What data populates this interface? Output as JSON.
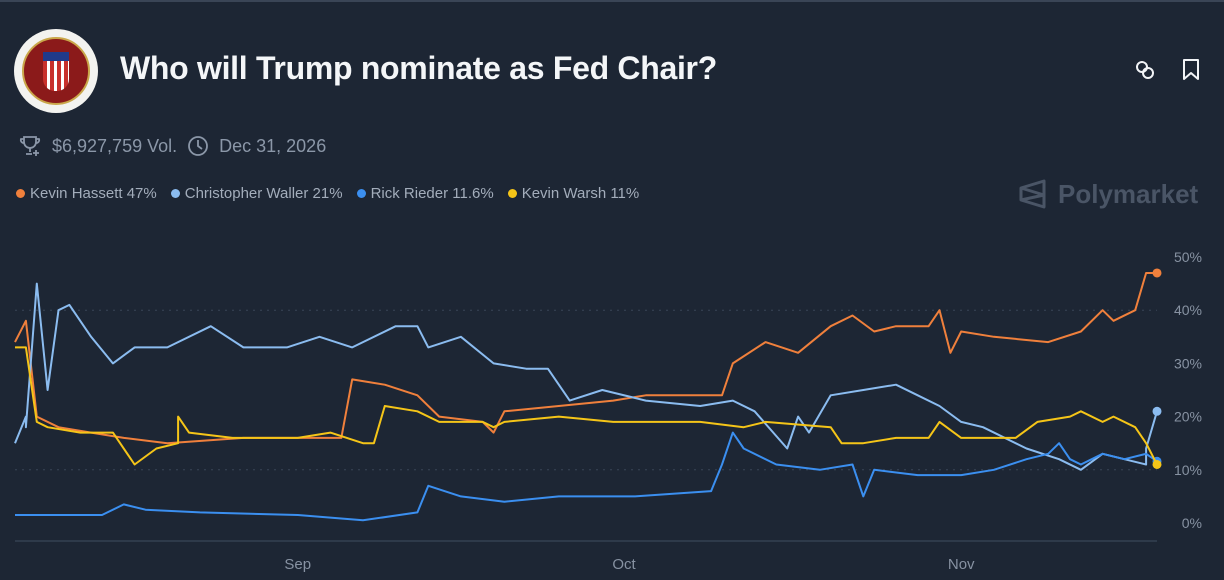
{
  "header": {
    "title": "Who will Trump nominate as Fed Chair?",
    "logo_text": "Board of Governors of the Federal Reserve System",
    "volume": "$6,927,759 Vol.",
    "end_date": "Dec 31, 2026",
    "brand": "Polymarket",
    "icons": [
      "trophy-icon",
      "clock-icon",
      "link-icon",
      "bookmark-icon"
    ]
  },
  "legend": [
    {
      "label": "Kevin Hassett 47%",
      "color": "#f0803c"
    },
    {
      "label": "Christopher Waller 21%",
      "color": "#8bbcf0"
    },
    {
      "label": "Rick Rieder 11.6%",
      "color": "#3b8ff0"
    },
    {
      "label": "Kevin Warsh 11%",
      "color": "#f5c518"
    }
  ],
  "chart_data": {
    "type": "line",
    "x_range": [
      "2025-08-06",
      "2025-11-19"
    ],
    "x_ticks": [
      {
        "date": "2025-09-01",
        "label": "Sep"
      },
      {
        "date": "2025-10-01",
        "label": "Oct"
      },
      {
        "date": "2025-11-01",
        "label": "Nov"
      }
    ],
    "ylim": [
      0,
      50
    ],
    "y_ticks": [
      {
        "v": 0,
        "label": "0%"
      },
      {
        "v": 10,
        "label": "10%"
      },
      {
        "v": 20,
        "label": "20%"
      },
      {
        "v": 30,
        "label": "30%"
      },
      {
        "v": 40,
        "label": "40%"
      },
      {
        "v": 50,
        "label": "50%"
      }
    ],
    "y_axis_position": "right",
    "grid": "dotted at 10% and 40%",
    "series": [
      {
        "name": "Kevin Hassett",
        "color": "#f0803c",
        "points": [
          [
            "2025-08-06",
            34
          ],
          [
            "2025-08-07",
            38
          ],
          [
            "2025-08-08",
            20
          ],
          [
            "2025-08-10",
            18
          ],
          [
            "2025-08-13",
            17
          ],
          [
            "2025-08-16",
            16
          ],
          [
            "2025-08-20",
            15
          ],
          [
            "2025-08-27",
            16
          ],
          [
            "2025-09-05",
            16
          ],
          [
            "2025-09-06",
            27
          ],
          [
            "2025-09-09",
            26
          ],
          [
            "2025-09-12",
            24
          ],
          [
            "2025-09-14",
            20
          ],
          [
            "2025-09-18",
            19
          ],
          [
            "2025-09-19",
            17
          ],
          [
            "2025-09-20",
            21
          ],
          [
            "2025-09-25",
            22
          ],
          [
            "2025-09-30",
            23
          ],
          [
            "2025-10-03",
            24
          ],
          [
            "2025-10-10",
            24
          ],
          [
            "2025-10-11",
            30
          ],
          [
            "2025-10-14",
            34
          ],
          [
            "2025-10-17",
            32
          ],
          [
            "2025-10-20",
            37
          ],
          [
            "2025-10-22",
            39
          ],
          [
            "2025-10-24",
            36
          ],
          [
            "2025-10-26",
            37
          ],
          [
            "2025-10-29",
            37
          ],
          [
            "2025-10-30",
            40
          ],
          [
            "2025-10-31",
            32
          ],
          [
            "2025-11-01",
            36
          ],
          [
            "2025-11-04",
            35
          ],
          [
            "2025-11-09",
            34
          ],
          [
            "2025-11-12",
            36
          ],
          [
            "2025-11-14",
            40
          ],
          [
            "2025-11-15",
            38
          ],
          [
            "2025-11-17",
            40
          ],
          [
            "2025-11-18",
            47
          ],
          [
            "2025-11-19",
            47
          ]
        ]
      },
      {
        "name": "Christopher Waller",
        "color": "#8bbcf0",
        "points": [
          [
            "2025-08-06",
            15
          ],
          [
            "2025-08-07",
            20
          ],
          [
            "2025-08-07",
            18
          ],
          [
            "2025-08-08",
            45
          ],
          [
            "2025-08-09",
            25
          ],
          [
            "2025-08-10",
            40
          ],
          [
            "2025-08-11",
            41
          ],
          [
            "2025-08-13",
            35
          ],
          [
            "2025-08-15",
            30
          ],
          [
            "2025-08-17",
            33
          ],
          [
            "2025-08-20",
            33
          ],
          [
            "2025-08-24",
            37
          ],
          [
            "2025-08-27",
            33
          ],
          [
            "2025-08-31",
            33
          ],
          [
            "2025-09-03",
            35
          ],
          [
            "2025-09-06",
            33
          ],
          [
            "2025-09-10",
            37
          ],
          [
            "2025-09-12",
            37
          ],
          [
            "2025-09-13",
            33
          ],
          [
            "2025-09-16",
            35
          ],
          [
            "2025-09-19",
            30
          ],
          [
            "2025-09-22",
            29
          ],
          [
            "2025-09-24",
            29
          ],
          [
            "2025-09-26",
            23
          ],
          [
            "2025-09-29",
            25
          ],
          [
            "2025-10-03",
            23
          ],
          [
            "2025-10-08",
            22
          ],
          [
            "2025-10-11",
            23
          ],
          [
            "2025-10-13",
            21
          ],
          [
            "2025-10-16",
            14
          ],
          [
            "2025-10-17",
            20
          ],
          [
            "2025-10-18",
            17
          ],
          [
            "2025-10-20",
            24
          ],
          [
            "2025-10-23",
            25
          ],
          [
            "2025-10-26",
            26
          ],
          [
            "2025-10-28",
            24
          ],
          [
            "2025-10-30",
            22
          ],
          [
            "2025-11-01",
            19
          ],
          [
            "2025-11-03",
            18
          ],
          [
            "2025-11-07",
            14
          ],
          [
            "2025-11-10",
            12
          ],
          [
            "2025-11-12",
            10
          ],
          [
            "2025-11-14",
            13
          ],
          [
            "2025-11-16",
            12
          ],
          [
            "2025-11-18",
            11
          ],
          [
            "2025-11-18",
            14
          ],
          [
            "2025-11-19",
            21
          ]
        ]
      },
      {
        "name": "Rick Rieder",
        "color": "#3b8ff0",
        "points": [
          [
            "2025-08-06",
            1.5
          ],
          [
            "2025-08-14",
            1.5
          ],
          [
            "2025-08-16",
            3.5
          ],
          [
            "2025-08-18",
            2.5
          ],
          [
            "2025-08-23",
            2
          ],
          [
            "2025-09-01",
            1.5
          ],
          [
            "2025-09-07",
            0.5
          ],
          [
            "2025-09-12",
            2
          ],
          [
            "2025-09-13",
            7
          ],
          [
            "2025-09-16",
            5
          ],
          [
            "2025-09-20",
            4
          ],
          [
            "2025-09-25",
            5
          ],
          [
            "2025-10-02",
            5
          ],
          [
            "2025-10-09",
            6
          ],
          [
            "2025-10-10",
            11
          ],
          [
            "2025-10-11",
            17
          ],
          [
            "2025-10-12",
            14
          ],
          [
            "2025-10-15",
            11
          ],
          [
            "2025-10-19",
            10
          ],
          [
            "2025-10-22",
            11
          ],
          [
            "2025-10-23",
            5
          ],
          [
            "2025-10-24",
            10
          ],
          [
            "2025-10-28",
            9
          ],
          [
            "2025-11-01",
            9
          ],
          [
            "2025-11-04",
            10
          ],
          [
            "2025-11-07",
            12
          ],
          [
            "2025-11-09",
            13
          ],
          [
            "2025-11-10",
            15
          ],
          [
            "2025-11-11",
            12
          ],
          [
            "2025-11-12",
            11
          ],
          [
            "2025-11-14",
            13
          ],
          [
            "2025-11-16",
            12
          ],
          [
            "2025-11-18",
            13
          ],
          [
            "2025-11-19",
            11.6
          ]
        ]
      },
      {
        "name": "Kevin Warsh",
        "color": "#f5c518",
        "points": [
          [
            "2025-08-06",
            33
          ],
          [
            "2025-08-07",
            33
          ],
          [
            "2025-08-08",
            19
          ],
          [
            "2025-08-09",
            18
          ],
          [
            "2025-08-12",
            17
          ],
          [
            "2025-08-15",
            17
          ],
          [
            "2025-08-17",
            11
          ],
          [
            "2025-08-19",
            14
          ],
          [
            "2025-08-21",
            15
          ],
          [
            "2025-08-21",
            20
          ],
          [
            "2025-08-22",
            17
          ],
          [
            "2025-08-26",
            16
          ],
          [
            "2025-09-01",
            16
          ],
          [
            "2025-09-04",
            17
          ],
          [
            "2025-09-07",
            15
          ],
          [
            "2025-09-08",
            15
          ],
          [
            "2025-09-09",
            22
          ],
          [
            "2025-09-12",
            21
          ],
          [
            "2025-09-14",
            19
          ],
          [
            "2025-09-18",
            19
          ],
          [
            "2025-09-19",
            18
          ],
          [
            "2025-09-20",
            19
          ],
          [
            "2025-09-25",
            20
          ],
          [
            "2025-09-30",
            19
          ],
          [
            "2025-10-08",
            19
          ],
          [
            "2025-10-12",
            18
          ],
          [
            "2025-10-14",
            19
          ],
          [
            "2025-10-20",
            18
          ],
          [
            "2025-10-21",
            15
          ],
          [
            "2025-10-23",
            15
          ],
          [
            "2025-10-26",
            16
          ],
          [
            "2025-10-29",
            16
          ],
          [
            "2025-10-30",
            19
          ],
          [
            "2025-11-01",
            16
          ],
          [
            "2025-11-06",
            16
          ],
          [
            "2025-11-08",
            19
          ],
          [
            "2025-11-11",
            20
          ],
          [
            "2025-11-12",
            21
          ],
          [
            "2025-11-14",
            19
          ],
          [
            "2025-11-15",
            20
          ],
          [
            "2025-11-17",
            18
          ],
          [
            "2025-11-18",
            15
          ],
          [
            "2025-11-19",
            11
          ]
        ]
      }
    ]
  }
}
